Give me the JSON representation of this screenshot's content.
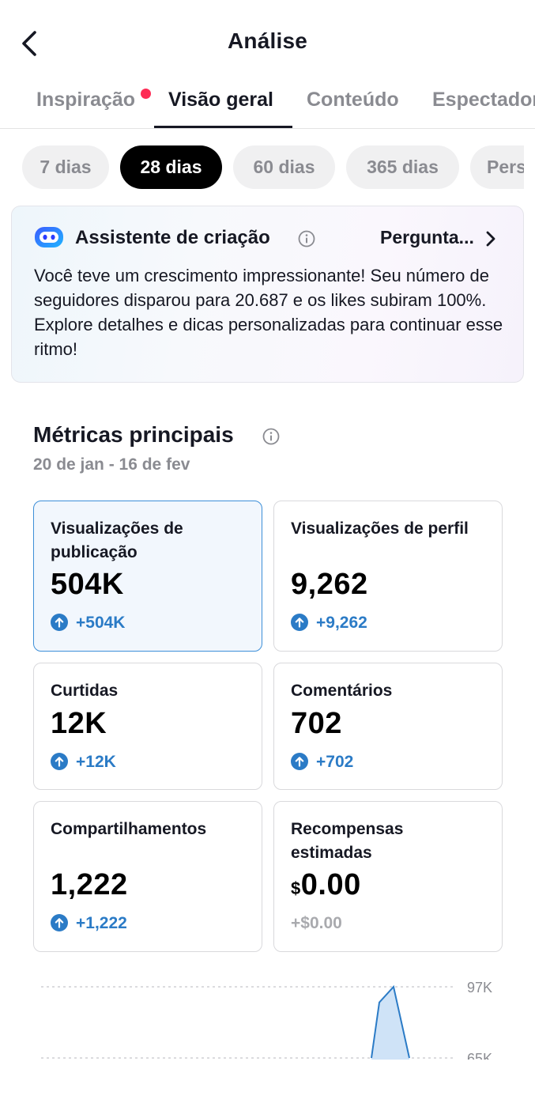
{
  "header": {
    "title": "Análise"
  },
  "tabs": [
    {
      "label": "Inspiração",
      "notify": true
    },
    {
      "label": "Visão geral",
      "active": true
    },
    {
      "label": "Conteúdo"
    },
    {
      "label": "Espectadores"
    }
  ],
  "periods": [
    {
      "label": "7 dias"
    },
    {
      "label": "28 dias",
      "selected": true
    },
    {
      "label": "60 dias"
    },
    {
      "label": "365 dias"
    },
    {
      "label": "Personalizado"
    }
  ],
  "assistant": {
    "title": "Assistente de criação",
    "ask_label": "Pergunta...",
    "message": "Você teve um crescimento impressionante! Seu número de seguidores disparou para 20.687 e os likes subiram 100%. Explore detalhes e dicas personalizadas para continuar esse ritmo!"
  },
  "metrics": {
    "title": "Métricas principais",
    "date_range": "20 de jan - 16 de fev",
    "cards": [
      {
        "label": "Visualizações de publicação",
        "value": "504K",
        "delta": "+504K",
        "selected": true
      },
      {
        "label": "Visualizações de perfil",
        "value": "9,262",
        "delta": "+9,262"
      },
      {
        "label": "Curtidas",
        "value": "12K",
        "delta": "+12K"
      },
      {
        "label": "Comentários",
        "value": "702",
        "delta": "+702"
      },
      {
        "label": "Compartilhamentos",
        "value": "1,222",
        "delta": "+1,222"
      },
      {
        "label": "Recompensas estimadas",
        "currency": "$",
        "value": "0.00",
        "delta": "+$0.00"
      }
    ]
  },
  "chart_data": {
    "type": "area",
    "y_ticks": [
      "97K",
      "65K"
    ],
    "grid": true,
    "series": [
      {
        "values": [
          65,
          90,
          97,
          65
        ]
      }
    ]
  },
  "colors": {
    "accent": "#2b7bc6",
    "notify_dot": "#fe2c55",
    "selected_card_border": "#3d8fd8"
  }
}
